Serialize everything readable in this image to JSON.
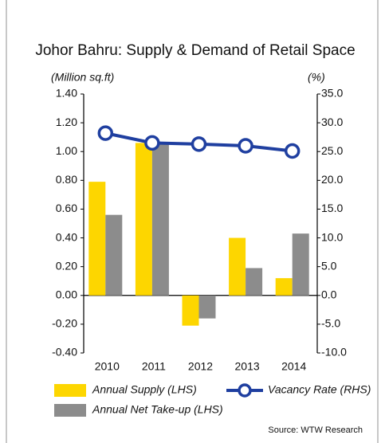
{
  "chart_data": {
    "type": "bar",
    "title": "Johor Bahru: Supply & Demand of Retail Space",
    "ylabel": "(Million sq.ft)",
    "y2label": "(%)",
    "source": "Source: WTW Research",
    "categories": [
      "2010",
      "2011",
      "2012",
      "2013",
      "2014"
    ],
    "series": [
      {
        "name": "Annual Supply (LHS)",
        "color": "#fdd600",
        "type": "bar",
        "values": [
          0.79,
          1.06,
          -0.21,
          0.4,
          0.12
        ]
      },
      {
        "name": "Annual Net Take-up (LHS)",
        "color": "#8c8c8c",
        "type": "bar",
        "values": [
          0.56,
          1.05,
          -0.16,
          0.19,
          0.43
        ]
      },
      {
        "name": "Vacancy Rate (RHS)",
        "color": "#1f3fa0",
        "type": "line",
        "axis": "y2",
        "values": [
          28.2,
          26.5,
          26.3,
          26.0,
          25.1
        ]
      }
    ],
    "ylim": [
      -0.4,
      1.4
    ],
    "yticks": [
      {
        "value": -0.4,
        "label": "-0.40"
      },
      {
        "value": -0.2,
        "label": "-0.20"
      },
      {
        "value": 0,
        "label": "0.00"
      },
      {
        "value": 0.2,
        "label": "0.20"
      },
      {
        "value": 0.4,
        "label": "0.40"
      },
      {
        "value": 0.6,
        "label": "0.60"
      },
      {
        "value": 0.8,
        "label": "0.80"
      },
      {
        "value": 1.0,
        "label": "1.00"
      },
      {
        "value": 1.2,
        "label": "1.20"
      },
      {
        "value": 1.4,
        "label": "1.40"
      }
    ],
    "y2lim": [
      -10,
      35
    ],
    "y2ticks": [
      {
        "value": -10,
        "label": "-10.0"
      },
      {
        "value": -5,
        "label": "-5.0"
      },
      {
        "value": 0,
        "label": "0.0"
      },
      {
        "value": 5,
        "label": "5.0"
      },
      {
        "value": 10,
        "label": "10.0"
      },
      {
        "value": 15,
        "label": "15.0"
      },
      {
        "value": 20,
        "label": "20.0"
      },
      {
        "value": 25,
        "label": "25.0"
      },
      {
        "value": 30,
        "label": "30.0"
      },
      {
        "value": 35,
        "label": "35.0"
      }
    ]
  }
}
